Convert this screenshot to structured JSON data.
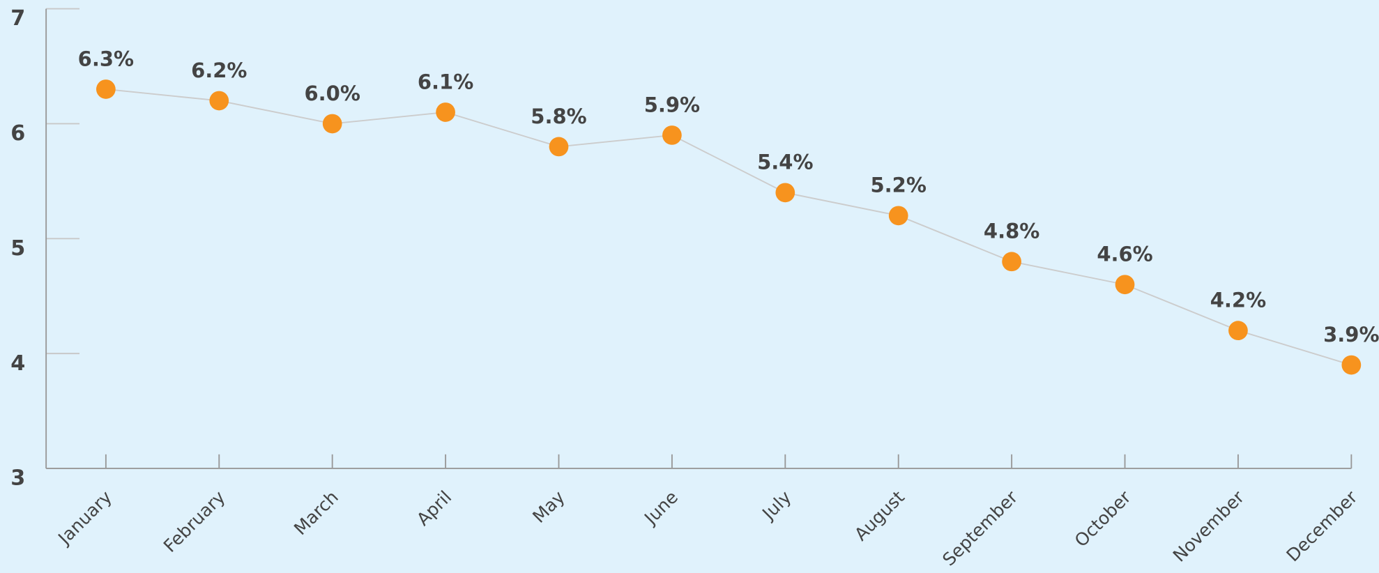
{
  "chart_data": {
    "type": "line",
    "categories": [
      "January",
      "February",
      "March",
      "April",
      "May",
      "June",
      "July",
      "August",
      "September",
      "October",
      "November",
      "December"
    ],
    "series": [
      {
        "color": "#f7931e",
        "values": [
          6.3,
          6.2,
          6.0,
          6.1,
          5.8,
          5.9,
          5.4,
          5.2,
          4.8,
          4.6,
          4.2,
          3.9
        ],
        "value_labels": [
          "6.3%",
          "6.2%",
          "6.0%",
          "6.1%",
          "5.8%",
          "5.9%",
          "5.4%",
          "5.2%",
          "4.8%",
          "4.6%",
          "4.2%",
          "3.9%"
        ]
      }
    ],
    "ylim": [
      3,
      7
    ],
    "yticks": [
      3,
      4,
      5,
      6,
      7
    ]
  }
}
